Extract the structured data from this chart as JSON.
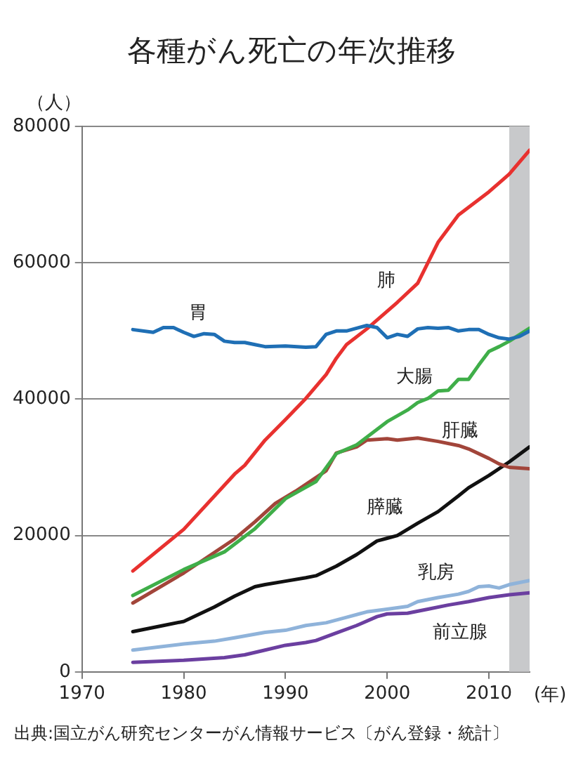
{
  "chart_data": {
    "type": "line",
    "title": "各種がん死亡の年次推移",
    "ylabel": "（人）",
    "xlabel": "(年)",
    "xlim": [
      1970,
      2014
    ],
    "xticks": [
      1970,
      1980,
      1990,
      2000,
      2010
    ],
    "ylim": [
      0,
      80000
    ],
    "yticks": [
      0,
      20000,
      40000,
      60000,
      80000
    ],
    "grid": "y",
    "legend": false,
    "marker": "none",
    "line_style": "solid",
    "bands": [
      {
        "axis": "x",
        "from": 2012,
        "to": 2014,
        "color": "#c8c9cb"
      }
    ],
    "series": [
      {
        "name": "胃",
        "color": "#1f6fb5",
        "x": [
          1975,
          1977,
          1978,
          1979,
          1980,
          1981,
          1982,
          1983,
          1984,
          1985,
          1986,
          1987,
          1988,
          1990,
          1992,
          1993,
          1994,
          1995,
          1996,
          1997,
          1998,
          1999,
          2000,
          2001,
          2002,
          2003,
          2004,
          2005,
          2006,
          2007,
          2008,
          2009,
          2010,
          2011,
          2012,
          2013,
          2014
        ],
        "values": [
          50200,
          49800,
          50500,
          50500,
          49800,
          49200,
          49600,
          49500,
          48500,
          48300,
          48300,
          48000,
          47700,
          47800,
          47600,
          47700,
          49500,
          50000,
          50000,
          50400,
          50800,
          50500,
          49000,
          49500,
          49200,
          50300,
          50500,
          50400,
          50500,
          50000,
          50200,
          50200,
          49500,
          49000,
          48800,
          49200,
          50000
        ]
      },
      {
        "name": "肺",
        "color": "#e8312f",
        "x": [
          1975,
          1980,
          1985,
          1986,
          1988,
          1990,
          1992,
          1994,
          1995,
          1996,
          1998,
          2001,
          2003,
          2005,
          2007,
          2010,
          2012,
          2014
        ],
        "values": [
          14800,
          20900,
          29000,
          30300,
          34000,
          37000,
          40100,
          43600,
          46000,
          48000,
          50300,
          54200,
          57000,
          63000,
          67000,
          70400,
          73000,
          76500
        ]
      },
      {
        "name": "大腸",
        "color": "#3fae49",
        "x": [
          1975,
          1980,
          1984,
          1987,
          1990,
          1993,
          1995,
          1997,
          2000,
          2002,
          2003,
          2004,
          2005,
          2006,
          2007,
          2008,
          2009,
          2010,
          2011,
          2012,
          2014
        ],
        "values": [
          11200,
          15000,
          17600,
          21000,
          25400,
          27900,
          32000,
          33300,
          36700,
          38400,
          39500,
          40100,
          41200,
          41300,
          42900,
          42900,
          45000,
          47000,
          47700,
          48500,
          50400
        ]
      },
      {
        "name": "肝臓",
        "color": "#a2453a",
        "x": [
          1975,
          1980,
          1985,
          1987,
          1989,
          1991,
          1993,
          1994,
          1995,
          1997,
          1998,
          2000,
          2001,
          2003,
          2005,
          2007,
          2008,
          2010,
          2011,
          2012,
          2014
        ],
        "values": [
          10100,
          14500,
          19500,
          22000,
          24700,
          26500,
          28500,
          29500,
          32100,
          33000,
          34000,
          34200,
          34000,
          34300,
          33800,
          33200,
          32700,
          31300,
          30500,
          30000,
          29800
        ]
      },
      {
        "name": "膵臓",
        "color": "#111111",
        "x": [
          1975,
          1978,
          1980,
          1983,
          1985,
          1987,
          1988,
          1990,
          1992,
          1993,
          1995,
          1997,
          1999,
          2000,
          2001,
          2003,
          2005,
          2007,
          2008,
          2010,
          2012,
          2014
        ],
        "values": [
          5900,
          6800,
          7400,
          9500,
          11100,
          12500,
          12800,
          13300,
          13800,
          14100,
          15500,
          17200,
          19200,
          19600,
          20000,
          21800,
          23500,
          25800,
          27000,
          28800,
          30800,
          33000
        ]
      },
      {
        "name": "乳房",
        "color": "#8fb3da",
        "x": [
          1975,
          1980,
          1983,
          1985,
          1988,
          1990,
          1992,
          1994,
          1996,
          1998,
          2000,
          2002,
          2003,
          2005,
          2007,
          2008,
          2009,
          2010,
          2011,
          2012,
          2014
        ],
        "values": [
          3200,
          4100,
          4500,
          5000,
          5800,
          6100,
          6800,
          7200,
          8000,
          8800,
          9200,
          9600,
          10300,
          10900,
          11400,
          11800,
          12500,
          12600,
          12300,
          12800,
          13400
        ]
      },
      {
        "name": "前立腺",
        "color": "#6b3fa0",
        "x": [
          1975,
          1980,
          1984,
          1986,
          1988,
          1990,
          1992,
          1993,
          1995,
          1997,
          1999,
          2000,
          2002,
          2004,
          2006,
          2008,
          2010,
          2012,
          2014
        ],
        "values": [
          1400,
          1700,
          2100,
          2500,
          3200,
          3900,
          4300,
          4600,
          5700,
          6800,
          8100,
          8500,
          8600,
          9200,
          9800,
          10300,
          10900,
          11300,
          11600
        ]
      }
    ],
    "annotations": [
      "出典:国立がん研究センターがん情報サービス〔がん登録・統計〕"
    ]
  }
}
